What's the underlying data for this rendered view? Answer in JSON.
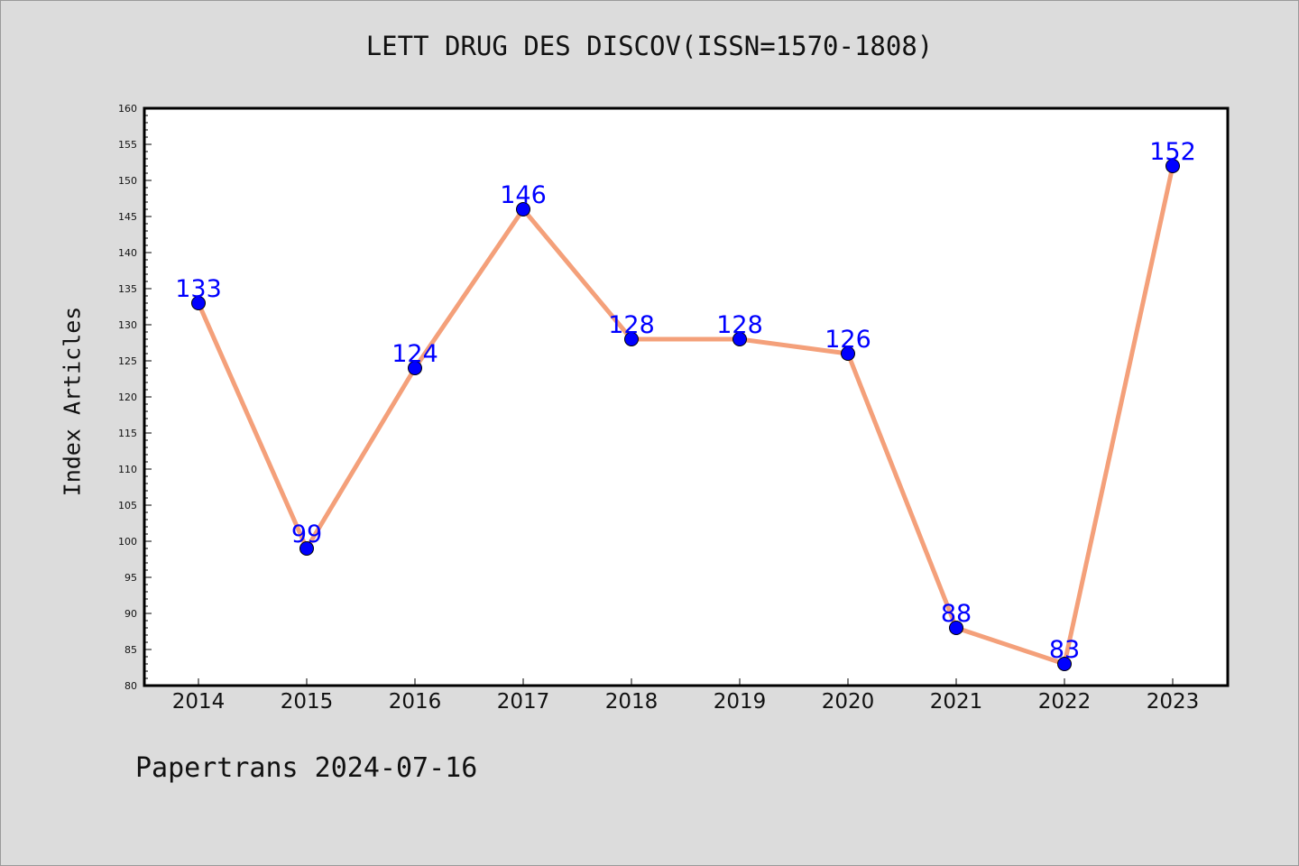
{
  "chart_data": {
    "type": "line",
    "title": "LETT DRUG DES DISCOV(ISSN=1570-1808)",
    "xlabel": "",
    "ylabel": "Index Articles",
    "categories": [
      "2014",
      "2015",
      "2016",
      "2017",
      "2018",
      "2019",
      "2020",
      "2021",
      "2022",
      "2023"
    ],
    "values": [
      133,
      99,
      124,
      146,
      128,
      128,
      126,
      88,
      83,
      152
    ],
    "ylim": [
      80,
      160
    ],
    "yticks": [
      80,
      85,
      90,
      95,
      100,
      105,
      110,
      115,
      120,
      125,
      130,
      135,
      140,
      145,
      150,
      155,
      160
    ],
    "grid": false,
    "line_color": "#f4a07a",
    "marker_color": "#0000ff",
    "label_color": "#0000ff"
  },
  "footer": {
    "text": "Papertrans 2024-07-16"
  }
}
